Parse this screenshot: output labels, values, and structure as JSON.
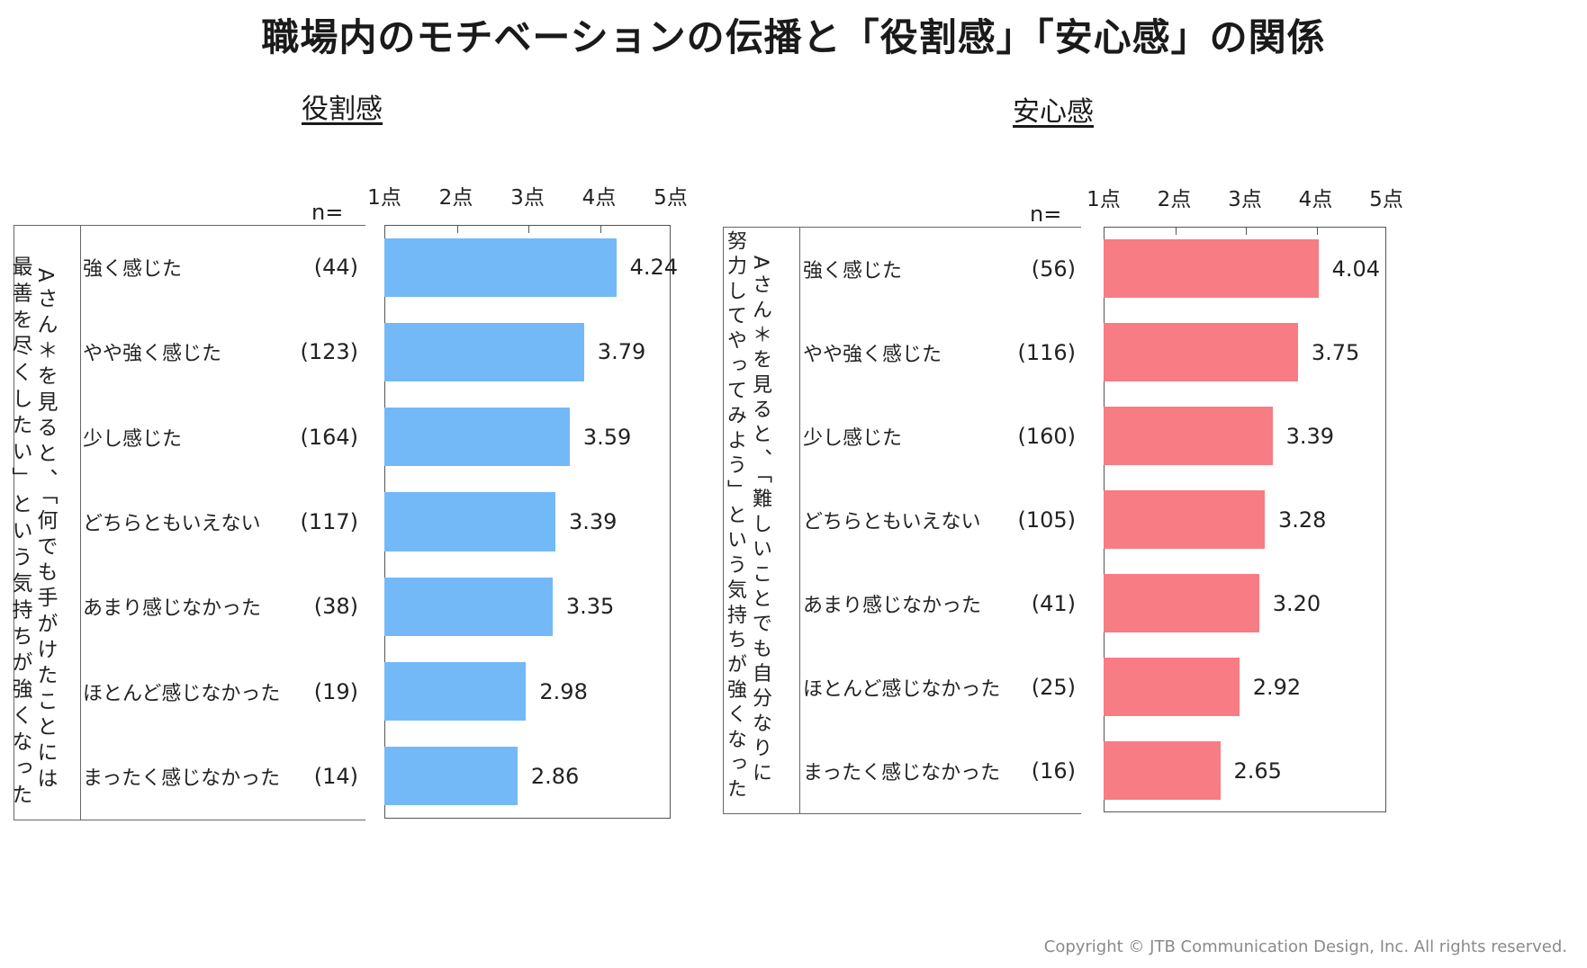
{
  "title": "職場内のモチベーションの伝播と「役割感」「安心感」の関係",
  "copyright": "Copyright © JTB Communication Design, Inc. All rights reserved.",
  "n_label": "n=",
  "chart_data": [
    {
      "type": "bar",
      "orientation": "horizontal",
      "title": "役割感",
      "color": "#74b9f7",
      "xlim": [
        1,
        5
      ],
      "ticks": [
        1,
        2,
        3,
        4,
        5
      ],
      "tick_labels": [
        "1点",
        "2点",
        "3点",
        "4点",
        "5点"
      ],
      "question_lines": [
        "Aさん＊を見ると、「何でも手がけたことには",
        "最善を尽くしたい」という気持ちが強くなった"
      ],
      "categories": [
        "強く感じた",
        "やや強く感じた",
        "少し感じた",
        "どちらともいえない",
        "あまり感じなかった",
        "ほとんど感じなかった",
        "まったく感じなかった"
      ],
      "n": [
        "(44)",
        "(123)",
        "(164)",
        "(117)",
        "(38)",
        "(19)",
        "(14)"
      ],
      "values": [
        4.24,
        3.79,
        3.59,
        3.39,
        3.35,
        2.98,
        2.86
      ],
      "value_labels": [
        "4.24",
        "3.79",
        "3.59",
        "3.39",
        "3.35",
        "2.98",
        "2.86"
      ]
    },
    {
      "type": "bar",
      "orientation": "horizontal",
      "title": "安心感",
      "color": "#f77c84",
      "xlim": [
        1,
        5
      ],
      "ticks": [
        1,
        2,
        3,
        4,
        5
      ],
      "tick_labels": [
        "1点",
        "2点",
        "3点",
        "4点",
        "5点"
      ],
      "question_lines": [
        "Aさん＊を見ると、「難しいことでも自分なりに",
        "努力してやってみよう」という気持ちが強くなった"
      ],
      "categories": [
        "強く感じた",
        "やや強く感じた",
        "少し感じた",
        "どちらともいえない",
        "あまり感じなかった",
        "ほとんど感じなかった",
        "まったく感じなかった"
      ],
      "n": [
        "(56)",
        "(116)",
        "(160)",
        "(105)",
        "(41)",
        "(25)",
        "(16)"
      ],
      "values": [
        4.04,
        3.75,
        3.39,
        3.28,
        3.2,
        2.92,
        2.65
      ],
      "value_labels": [
        "4.04",
        "3.75",
        "3.39",
        "3.28",
        "3.20",
        "2.92",
        "2.65"
      ]
    }
  ]
}
